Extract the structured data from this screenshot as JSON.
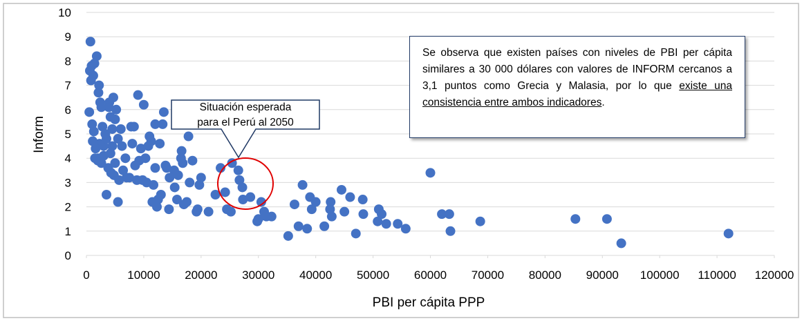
{
  "chart_data": {
    "type": "scatter",
    "x_label": "PBI per cápita PPP",
    "y_label": "Inform",
    "color": "#4472c4",
    "grid": true,
    "xlim": [
      0,
      120000
    ],
    "ylim": [
      0,
      10
    ],
    "xticks": [
      0,
      10000,
      20000,
      30000,
      40000,
      50000,
      60000,
      70000,
      80000,
      90000,
      100000,
      110000,
      120000
    ],
    "yticks": [
      0,
      1,
      2,
      3,
      4,
      5,
      6,
      7,
      8,
      9,
      10
    ],
    "callout": "Situación esperada para el Perú al 2050",
    "note": {
      "text": "Se observa que existen países con niveles de PBI per cápita similares a 30 000 dólares con valores de INFORM cercanos a 3,1 puntos como Grecia y Malasia, por lo que ",
      "underlined": "existe una consistencia entre ambos indicadores",
      "end": "."
    },
    "x": [
      60000,
      62000,
      63300,
      63500,
      68700,
      85300,
      90800,
      93300,
      112000,
      55700,
      54300,
      52300,
      51000,
      51500,
      50800,
      48200,
      48300,
      47000,
      46000,
      44500,
      45000,
      42600,
      42500,
      42800,
      41500,
      40000,
      39000,
      39300,
      38500,
      37700,
      37000,
      36300,
      35200,
      32300,
      31400,
      31000,
      30500,
      30000,
      29800,
      28600,
      27300,
      27200,
      26700,
      26500,
      25400,
      25200,
      24500,
      24200,
      23400,
      22500,
      21300,
      20000,
      19700,
      19200,
      19400,
      18500,
      18000,
      17800,
      17500,
      17000,
      16800,
      16600,
      16500,
      16000,
      15800,
      15400,
      15300,
      14500,
      14400,
      14000,
      13800,
      13500,
      13300,
      13000,
      12800,
      12500,
      12300,
      12000,
      12000,
      11700,
      11500,
      11300,
      11000,
      10800,
      10500,
      10300,
      10000,
      9800,
      9500,
      9200,
      9000,
      8800,
      8500,
      8300,
      8000,
      7800,
      7500,
      7000,
      6800,
      6400,
      6200,
      6000,
      5700,
      5500,
      5500,
      5200,
      5000,
      4800,
      4700,
      4500,
      4300,
      4200,
      4000,
      3800,
      3500,
      3300,
      3000,
      2800,
      2600,
      2400,
      2300,
      2200,
      2100,
      2000,
      1800,
      1600,
      1400,
      1300,
      1200,
      1100,
      1000,
      900,
      800,
      700,
      600,
      500,
      2000,
      3000,
      3500,
      4200,
      5000,
      4500,
      3900,
      2600,
      1500
    ],
    "values": [
      3.4,
      1.7,
      1.7,
      1.0,
      1.4,
      1.5,
      1.5,
      0.5,
      0.9,
      1.1,
      1.3,
      1.3,
      1.9,
      1.7,
      1.4,
      2.3,
      1.7,
      0.9,
      2.4,
      2.7,
      1.8,
      2.2,
      1.9,
      1.6,
      1.2,
      2.2,
      2.4,
      1.9,
      1.1,
      2.9,
      1.2,
      2.1,
      0.8,
      1.6,
      1.6,
      1.8,
      2.2,
      1.5,
      1.4,
      2.4,
      2.3,
      2.8,
      3.1,
      3.5,
      3.8,
      1.8,
      1.9,
      2.6,
      3.6,
      2.5,
      1.8,
      3.2,
      2.9,
      1.8,
      1.9,
      3.9,
      3.0,
      4.9,
      2.2,
      2.1,
      3.8,
      4.3,
      4.0,
      3.3,
      2.3,
      2.8,
      3.5,
      3.2,
      1.9,
      3.6,
      3.7,
      5.9,
      5.4,
      2.5,
      4.6,
      2.3,
      2.0,
      3.6,
      5.4,
      2.9,
      2.2,
      4.7,
      4.9,
      4.5,
      3.0,
      4.0,
      6.2,
      3.1,
      4.4,
      3.9,
      6.6,
      3.1,
      3.7,
      5.3,
      4.6,
      5.3,
      3.2,
      3.2,
      4.0,
      3.5,
      4.5,
      5.2,
      3.1,
      2.2,
      4.8,
      6.0,
      5.6,
      3.3,
      6.5,
      4.5,
      3.4,
      5.7,
      6.3,
      3.6,
      2.5,
      5.0,
      4.5,
      5.3,
      3.8,
      6.3,
      4.6,
      7.0,
      6.7,
      4.0,
      8.2,
      4.4,
      7.9,
      5.1,
      7.4,
      4.7,
      5.4,
      7.8,
      7.2,
      8.8,
      7.6,
      5.9,
      3.9,
      4.1,
      4.8,
      4.2,
      3.8,
      5.2,
      6.1,
      6.1,
      4.0
    ]
  }
}
